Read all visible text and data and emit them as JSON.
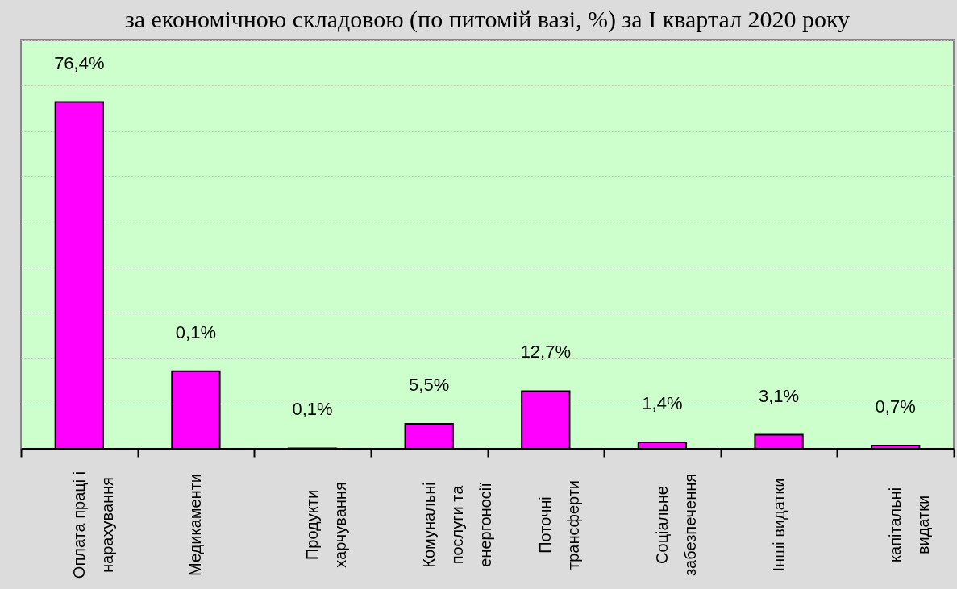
{
  "chart_data": {
    "type": "bar",
    "title": "за економічною складовою (по питомій вазі, %) за І квартал 2020 року",
    "categories": [
      "Оплата праці і нарахування",
      "Медикаменти",
      "Продукти харчування",
      "Комунальні послуги та енергоносії",
      "Поточні трансферти",
      "Соціальне забезпечення",
      "Інші видатки",
      "капітальні видатки"
    ],
    "values": [
      76.4,
      17.1,
      0.1,
      5.5,
      12.7,
      1.4,
      3.1,
      0.7
    ],
    "value_labels": [
      "76,4%",
      null,
      "0,1%",
      "5,5%",
      "12,7%",
      "1,4%",
      "3,1%",
      "0,7%"
    ],
    "annotations": [
      {
        "text": "0,1%",
        "x": "Медикаменти",
        "y": 17.1
      }
    ],
    "color": "#ff00ff",
    "ylim": [
      0,
      90
    ],
    "yticks": [
      {
        "value": 0,
        "label": null
      },
      {
        "value": 10,
        "label": null
      },
      {
        "value": 20,
        "label": null
      },
      {
        "value": 30,
        "label": null
      },
      {
        "value": 40,
        "label": null
      },
      {
        "value": 50,
        "label": null
      },
      {
        "value": 60,
        "label": null
      },
      {
        "value": 70,
        "label": null
      },
      {
        "value": 80,
        "label": null
      },
      {
        "value": 90,
        "label": null
      }
    ],
    "grid": "y",
    "tick_labels": "x"
  }
}
